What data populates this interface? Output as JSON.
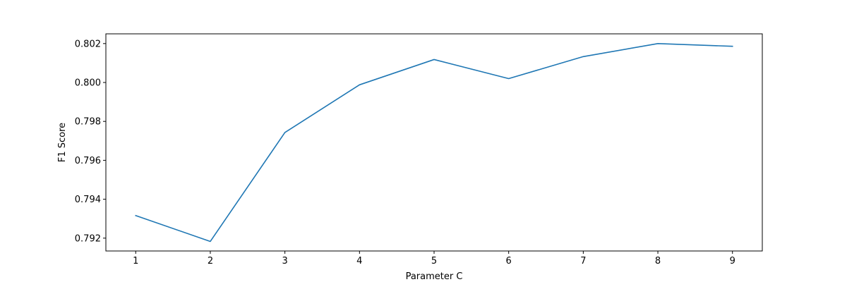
{
  "chart_data": {
    "type": "line",
    "title": "",
    "xlabel": "Parameter C",
    "ylabel": "F1 Score",
    "x": [
      1,
      2,
      3,
      4,
      5,
      6,
      7,
      8,
      9
    ],
    "series": [
      {
        "values": [
          0.79316,
          0.79183,
          0.79743,
          0.79988,
          0.80118,
          0.8002,
          0.80133,
          0.802,
          0.80186
        ],
        "color": "#1f77b4"
      }
    ],
    "xlim": [
      0.6,
      9.4
    ],
    "ylim": [
      0.79134,
      0.8025
    ],
    "x_ticks": [
      1,
      2,
      3,
      4,
      5,
      6,
      7,
      8,
      9
    ],
    "x_tick_labels": [
      "1",
      "2",
      "3",
      "4",
      "5",
      "6",
      "7",
      "8",
      "9"
    ],
    "y_ticks": [
      0.792,
      0.794,
      0.796,
      0.798,
      0.8,
      0.802
    ],
    "y_tick_labels": [
      "0.792",
      "0.794",
      "0.796",
      "0.798",
      "0.800",
      "0.802"
    ],
    "grid": false,
    "legend": "none"
  }
}
